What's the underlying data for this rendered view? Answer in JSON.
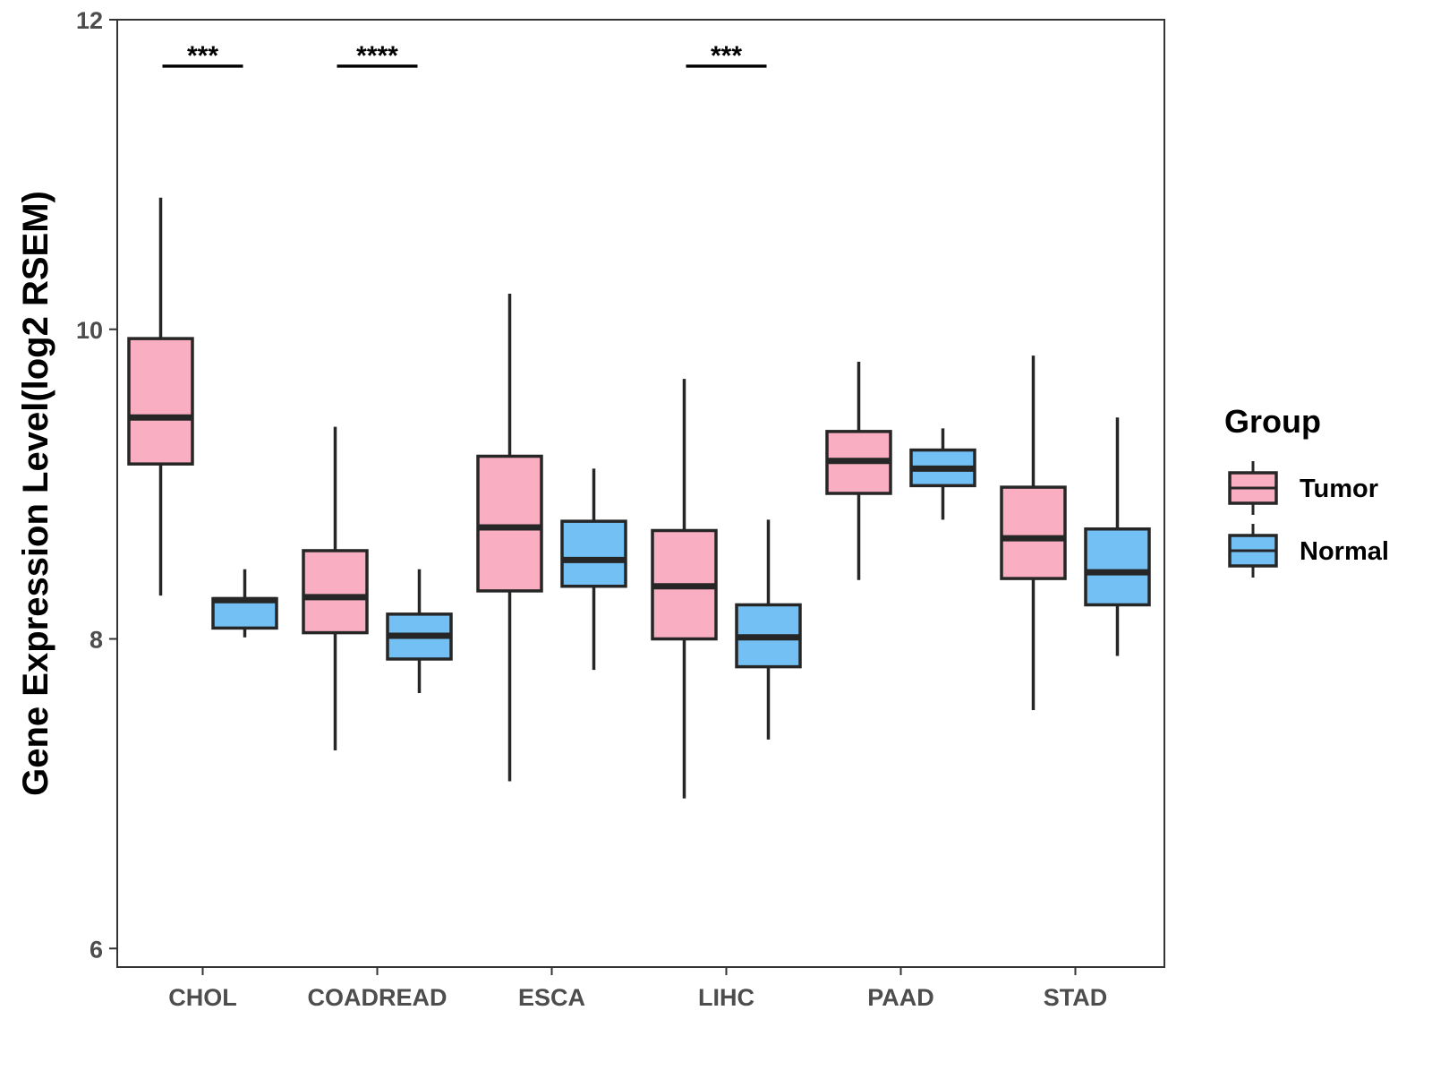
{
  "chart_data": {
    "type": "boxplot",
    "title": "",
    "xlabel": "",
    "ylabel": "Gene Expression Level(log2 RSEM)",
    "ylim": [
      5.88,
      12
    ],
    "yticks": [
      6,
      8,
      10,
      12
    ],
    "categories": [
      "CHOL",
      "COADREAD",
      "ESCA",
      "LIHC",
      "PAAD",
      "STAD"
    ],
    "grid": false,
    "legend": {
      "title": "Group",
      "position": "right",
      "entries": [
        {
          "name": "Tumor",
          "color": "#f9afc1"
        },
        {
          "name": "Normal",
          "color": "#73c0f4"
        }
      ]
    },
    "series": [
      {
        "name": "Tumor",
        "color": "#f9afc1",
        "boxes": [
          {
            "category": "CHOL",
            "min": 8.28,
            "q1": 9.13,
            "median": 9.43,
            "q3": 9.94,
            "max": 10.85
          },
          {
            "category": "COADREAD",
            "min": 7.28,
            "q1": 8.04,
            "median": 8.27,
            "q3": 8.57,
            "max": 9.37
          },
          {
            "category": "ESCA",
            "min": 7.08,
            "q1": 8.31,
            "median": 8.72,
            "q3": 9.18,
            "max": 10.23
          },
          {
            "category": "LIHC",
            "min": 6.97,
            "q1": 8.0,
            "median": 8.34,
            "q3": 8.7,
            "max": 9.68
          },
          {
            "category": "PAAD",
            "min": 8.38,
            "q1": 8.94,
            "median": 9.15,
            "q3": 9.34,
            "max": 9.79
          },
          {
            "category": "STAD",
            "min": 7.54,
            "q1": 8.39,
            "median": 8.65,
            "q3": 8.98,
            "max": 9.83
          }
        ]
      },
      {
        "name": "Normal",
        "color": "#73c0f4",
        "boxes": [
          {
            "category": "CHOL",
            "min": 8.01,
            "q1": 8.07,
            "median": 8.25,
            "q3": 8.26,
            "max": 8.45
          },
          {
            "category": "COADREAD",
            "min": 7.65,
            "q1": 7.87,
            "median": 8.02,
            "q3": 8.16,
            "max": 8.45
          },
          {
            "category": "ESCA",
            "min": 7.8,
            "q1": 8.34,
            "median": 8.51,
            "q3": 8.76,
            "max": 9.1
          },
          {
            "category": "LIHC",
            "min": 7.35,
            "q1": 7.82,
            "median": 8.01,
            "q3": 8.22,
            "max": 8.77
          },
          {
            "category": "PAAD",
            "min": 8.77,
            "q1": 8.99,
            "median": 9.1,
            "q3": 9.22,
            "max": 9.36
          },
          {
            "category": "STAD",
            "min": 7.89,
            "q1": 8.22,
            "median": 8.43,
            "q3": 8.71,
            "max": 9.43
          }
        ]
      }
    ],
    "annotations": [
      {
        "category": "CHOL",
        "label": "***",
        "y": 11.7
      },
      {
        "category": "COADREAD",
        "label": "****",
        "y": 11.7
      },
      {
        "category": "LIHC",
        "label": "***",
        "y": 11.7
      }
    ]
  }
}
